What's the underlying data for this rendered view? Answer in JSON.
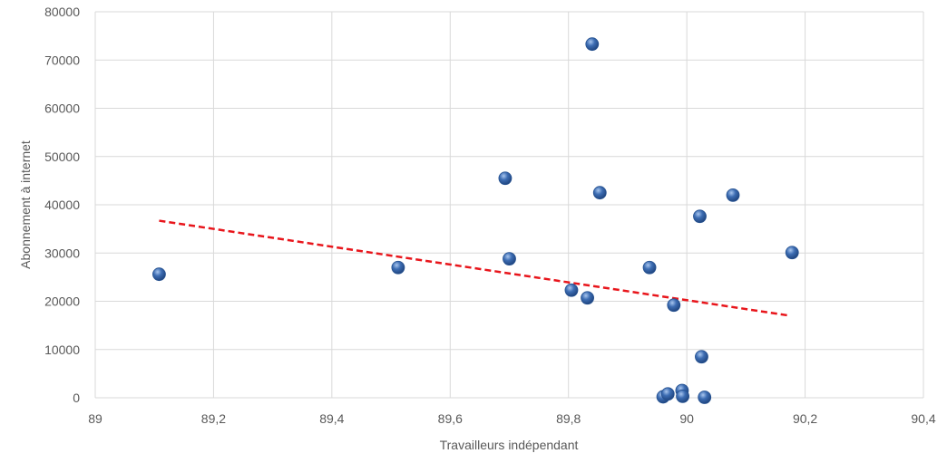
{
  "chart_data": {
    "type": "scatter",
    "title": "",
    "xlabel": "Travailleurs indépendant",
    "ylabel": "Abonnement à internet",
    "xlim": [
      89,
      90.4
    ],
    "ylim": [
      0,
      80000
    ],
    "x_ticks": [
      "89",
      "89,2",
      "89,4",
      "89,6",
      "89,8",
      "90",
      "90,2",
      "90,4"
    ],
    "y_ticks": [
      "0",
      "10000",
      "20000",
      "30000",
      "40000",
      "50000",
      "60000",
      "70000",
      "80000"
    ],
    "grid": true,
    "colors": {
      "marker": "#3d6db3",
      "trendline": "#e8151b",
      "grid": "#d9d9d9"
    },
    "series": [
      {
        "points": [
          {
            "x": 89.108,
            "y": 25600
          },
          {
            "x": 89.512,
            "y": 27000
          },
          {
            "x": 89.693,
            "y": 45500
          },
          {
            "x": 89.7,
            "y": 28800
          },
          {
            "x": 89.805,
            "y": 22300
          },
          {
            "x": 89.832,
            "y": 20700
          },
          {
            "x": 89.84,
            "y": 73300
          },
          {
            "x": 89.853,
            "y": 42500
          },
          {
            "x": 89.937,
            "y": 27000
          },
          {
            "x": 89.96,
            "y": 200
          },
          {
            "x": 89.968,
            "y": 800
          },
          {
            "x": 89.978,
            "y": 19200
          },
          {
            "x": 89.992,
            "y": 1500
          },
          {
            "x": 89.993,
            "y": 300
          },
          {
            "x": 90.022,
            "y": 37600
          },
          {
            "x": 90.025,
            "y": 8500
          },
          {
            "x": 90.03,
            "y": 100
          },
          {
            "x": 90.078,
            "y": 42000
          },
          {
            "x": 90.178,
            "y": 30100
          }
        ]
      }
    ],
    "trendline": {
      "style": "dashed",
      "x": [
        89.108,
        90.175
      ],
      "y": [
        36700,
        17000
      ]
    }
  }
}
